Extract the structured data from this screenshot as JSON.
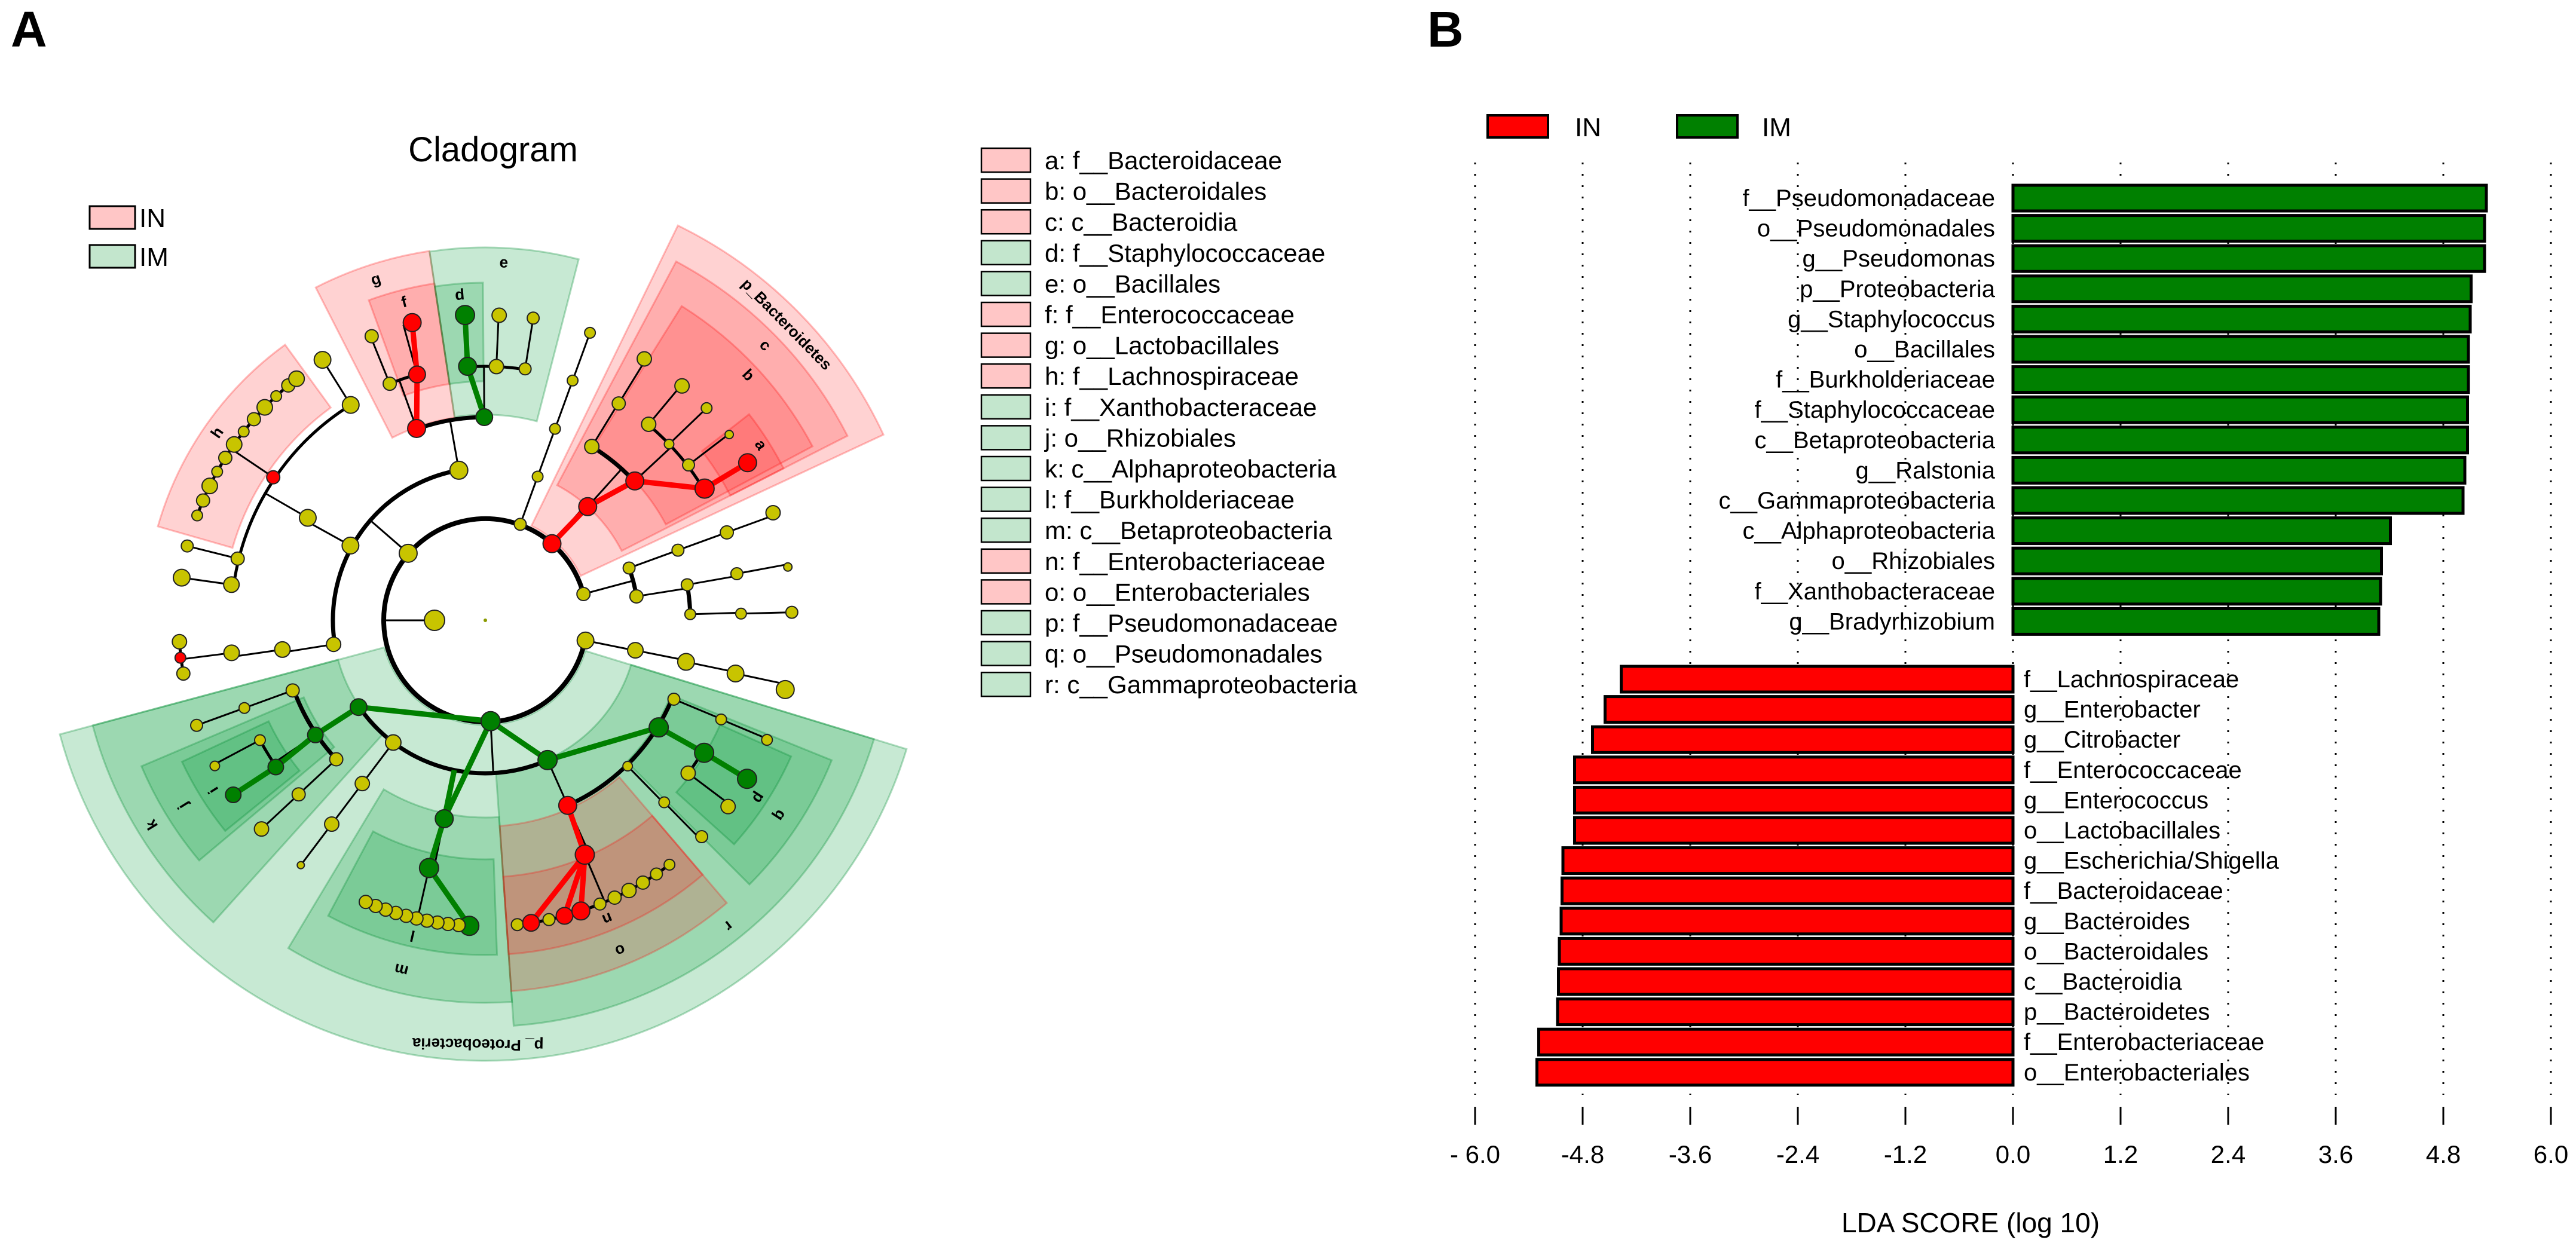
{
  "panels": {
    "a_label": "A",
    "b_label": "B"
  },
  "colors": {
    "IN": "#ff0000",
    "IM": "#008000",
    "IN_light": "#ffc6c6",
    "IM_light": "#c3e6cd",
    "node_neutral": "#c8c400"
  },
  "cladogram": {
    "title": "Cladogram",
    "legend": [
      {
        "label": "IN"
      },
      {
        "label": "IM"
      }
    ],
    "clade_labels": {
      "pB": "p_Bacteroidetes",
      "pP": "p_ Proteobacteria",
      "a": "a",
      "b": "b",
      "c": "c",
      "d": "d",
      "e": "e",
      "f": "f",
      "g": "g",
      "h": "h",
      "i": "i",
      "j": "j",
      "k": "k",
      "l": "l",
      "m": "m",
      "n": "n",
      "o": "o",
      "p": "p",
      "q": "q",
      "r": "r"
    },
    "key": [
      {
        "text": "a: f__Bacteroidaceae",
        "group": "IN"
      },
      {
        "text": "b: o__Bacteroidales",
        "group": "IN"
      },
      {
        "text": "c: c__Bacteroidia",
        "group": "IN"
      },
      {
        "text": "d: f__Staphylococcaceae",
        "group": "IM"
      },
      {
        "text": "e: o__Bacillales",
        "group": "IM"
      },
      {
        "text": "f: f__Enterococcaceae",
        "group": "IN"
      },
      {
        "text": "g: o__Lactobacillales",
        "group": "IN"
      },
      {
        "text": "h: f__Lachnospiraceae",
        "group": "IN"
      },
      {
        "text": "i: f__Xanthobacteraceae",
        "group": "IM"
      },
      {
        "text": "j: o__Rhizobiales",
        "group": "IM"
      },
      {
        "text": "k: c__Alphaproteobacteria",
        "group": "IM"
      },
      {
        "text": "l: f__Burkholderiaceae",
        "group": "IM"
      },
      {
        "text": "m: c__Betaproteobacteria",
        "group": "IM"
      },
      {
        "text": "n: f__Enterobacteriaceae",
        "group": "IN"
      },
      {
        "text": "o: o__Enterobacteriales",
        "group": "IN"
      },
      {
        "text": "p: f__Pseudomonadaceae",
        "group": "IM"
      },
      {
        "text": "q: o__Pseudomonadales",
        "group": "IM"
      },
      {
        "text": "r: c__Gammaproteobacteria",
        "group": "IM"
      }
    ]
  },
  "chart_data": {
    "type": "bar",
    "orientation": "horizontal",
    "xlabel": "LDA SCORE (log 10)",
    "xlim": [
      -6.0,
      6.0
    ],
    "xticks": [
      -6.0,
      -4.8,
      -3.6,
      -2.4,
      -1.2,
      0.0,
      1.2,
      2.4,
      3.6,
      4.8,
      6.0
    ],
    "xtick_labels": [
      "- 6.0",
      "-4.8",
      "-3.6",
      "-2.4",
      "-1.2",
      "0.0",
      "1.2",
      "2.4",
      "3.6",
      "4.8",
      "6.0"
    ],
    "grid": "vertical dotted",
    "legend": {
      "placement": "top-left",
      "entries": [
        {
          "name": "IN"
        },
        {
          "name": "IM"
        }
      ]
    },
    "categories": [
      "f__Pseudomonadaceae",
      "o__Pseudomonadales",
      "g__Pseudomonas",
      "p__Proteobacteria",
      "g__Staphylococcus",
      "o__Bacillales",
      "f__Burkholderiaceae",
      "f__Staphylococcaceae",
      "c__Betaproteobacteria",
      "g__Ralstonia",
      "c__Gammaproteobacteria",
      "c__Alphaproteobacteria",
      "o__Rhizobiales",
      "f__Xanthobacteraceae",
      "g__Bradyrhizobium",
      "f__Lachnospiraceae",
      "g__Enterobacter",
      "g__Citrobacter",
      "f__Enterococcaceae",
      "g__Enterococcus",
      "o__Lactobacillales",
      "g__Escherichia/Shigella",
      "f__Bacteroidaceae",
      "g__Bacteroides",
      "o__Bacteroidales",
      "c__Bacteroidia",
      "p__Bacteroidetes",
      "f__Enterobacteriaceae",
      "o__Enterobacteriales"
    ],
    "values": [
      5.28,
      5.26,
      5.26,
      5.11,
      5.1,
      5.08,
      5.08,
      5.07,
      5.07,
      5.04,
      5.02,
      4.21,
      4.11,
      4.1,
      4.08,
      -4.37,
      -4.55,
      -4.69,
      -4.89,
      -4.89,
      -4.89,
      -5.02,
      -5.03,
      -5.04,
      -5.06,
      -5.07,
      -5.08,
      -5.29,
      -5.31
    ],
    "groups": [
      "IM",
      "IM",
      "IM",
      "IM",
      "IM",
      "IM",
      "IM",
      "IM",
      "IM",
      "IM",
      "IM",
      "IM",
      "IM",
      "IM",
      "IM",
      "IN",
      "IN",
      "IN",
      "IN",
      "IN",
      "IN",
      "IN",
      "IN",
      "IN",
      "IN",
      "IN",
      "IN",
      "IN",
      "IN"
    ]
  }
}
